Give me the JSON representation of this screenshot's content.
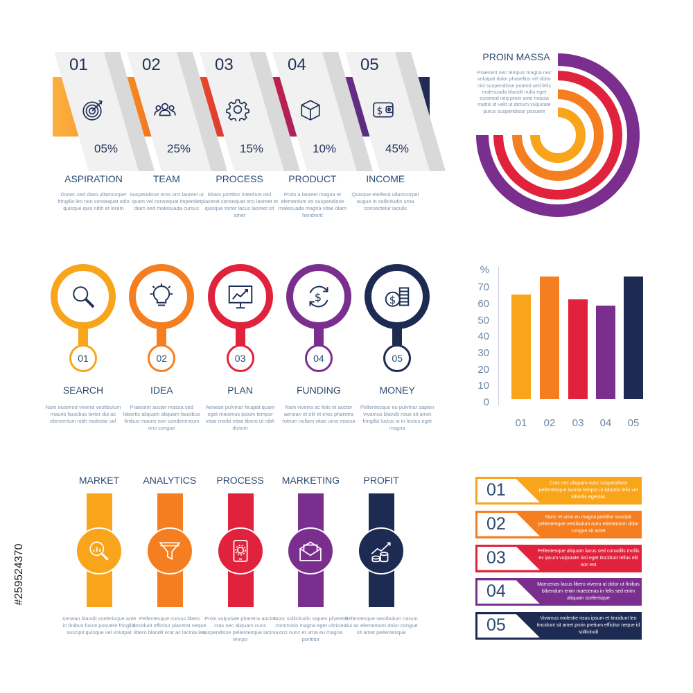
{
  "colors": {
    "c1": "#f8a51c",
    "c2": "#f57f20",
    "c3": "#e1223c",
    "c4": "#7a2f8f",
    "c5": "#1d2a52",
    "text": "#2b4a6f",
    "muted": "#7d93ad"
  },
  "steps": [
    {
      "num": "01",
      "pct": "05%",
      "icon": "target-icon",
      "title": "ASPIRATION",
      "desc": "Donec sed diam ullamcorper fringilla leo non consequat odio quisque quis nibh et lorem"
    },
    {
      "num": "02",
      "pct": "25%",
      "icon": "team-icon",
      "title": "TEAM",
      "desc": "Suspendisse eros orci laoreet ut quam vel consequat imperdiet diam sed malesuada cursus"
    },
    {
      "num": "03",
      "pct": "15%",
      "icon": "gear-icon",
      "title": "PROCESS",
      "desc": "Etiam porttitor interdum nisl placerat consequat orci laoreet et quisque tortor lacus laoreet sit amet"
    },
    {
      "num": "04",
      "pct": "10%",
      "icon": "box-icon",
      "title": "PRODUCT",
      "desc": "Proin a laoreet magna et elementum ex suspendisse malesuada magna vitae diam hendrerit"
    },
    {
      "num": "05",
      "pct": "45%",
      "icon": "wallet-icon",
      "title": "INCOME",
      "desc": "Quisque eleifend ullamcorper augue in sollicitudin urna consectetur iaculis"
    }
  ],
  "radial": {
    "title": "PROIN MASSA",
    "desc": "Praesent nec tempus magna nec volutpat dolor phasellus vel dolor nisl suspendisse potenti sed felis malesuada blandit nulla eget euismod neq proin ante massa mattis id velit ut dictum vulputate purus suspendisse posuere"
  },
  "circles": [
    {
      "num": "01",
      "icon": "search-icon",
      "title": "SEARCH",
      "desc": "Nam euismod viverra vestibulum mauris faucibus tortor dui ac elementum nibh molestie vel"
    },
    {
      "num": "02",
      "icon": "lightbulb-icon",
      "title": "IDEA",
      "desc": "Praesent auctor massa sed lobortis aliquam aliquam faucibus finibus mauris non condimentum orci congue"
    },
    {
      "num": "03",
      "icon": "chart-board-icon",
      "title": "PLAN",
      "desc": "Aenean pulvinar feugiat quam eget maximus ipsum tempor vitae morbi vitae libero ut nibh dictum"
    },
    {
      "num": "04",
      "icon": "dollar-cycle-icon",
      "title": "FUNDING",
      "desc": "Nam viverra ac felis et auctor aenean et elit et eros pharetra rutrum nullam vitae urna massa"
    },
    {
      "num": "05",
      "icon": "coins-icon",
      "title": "MONEY",
      "desc": "Pellentesque eu pulvinar sapien vivamus blandit risus sit amet fringilla luctus in in lectus eget magna"
    }
  ],
  "chart_data": {
    "type": "bar",
    "categories": [
      "01",
      "02",
      "03",
      "04",
      "05"
    ],
    "values": [
      66,
      77,
      63,
      59,
      77
    ],
    "ylabel": "%",
    "yticks": [
      0,
      10,
      20,
      30,
      40,
      50,
      60,
      70
    ],
    "ylim": [
      0,
      80
    ],
    "grid": false,
    "colors": [
      "#f8a51c",
      "#f57f20",
      "#e1223c",
      "#7a2f8f",
      "#1d2a52"
    ]
  },
  "pillars": [
    {
      "icon": "analytics-search-icon",
      "title": "MARKET",
      "desc": "Aenean blandit scelerisque ante in finibus fusce posuere fringilla suscipit quisque vel volutpat"
    },
    {
      "icon": "funnel-icon",
      "title": "ANALYTICS",
      "desc": "Pellentesque cursus libero tincidunt efficitur placerat neque libero blandit erat ac lacinia leo"
    },
    {
      "icon": "tablet-gear-icon",
      "title": "PROCESS",
      "desc": "Proin vulputate pharetra auctor cras nec aliquam nunc suspendisse pellentesque lacinia tempo"
    },
    {
      "icon": "envelope-icon",
      "title": "MARKETING",
      "desc": "Nunc sollicitudin sapien pharetra commodo magna eget ultricies orci nunc et urna eu magna porttitor"
    },
    {
      "icon": "growth-coins-icon",
      "title": "PROFIT",
      "desc": "Pellentesque vestibulum rutrum dui ac elementum dolor congue sit amet pellentesque"
    }
  ],
  "list": [
    {
      "num": "01",
      "text": "Cras nec aliquam nunc suspendisse pellentesque lacinia tempor in lobortis felis vel lobortis egestas"
    },
    {
      "num": "02",
      "text": "Nunc et urna eu magna porttitor suscipit pellentesque vestibulum rutru elementum dolor congue sit amet"
    },
    {
      "num": "03",
      "text": "Pellentesque aliquam lacus sed convallis mollis ex ipsum vulputate nisi eget tincidunt tellus elit non est"
    },
    {
      "num": "04",
      "text": "Maecenas lacus libero viverra at dolor ut finibus bibendum enim maecenas in felis sed enim aliquam scelerisque"
    },
    {
      "num": "05",
      "text": "Vivamus molestie risus ipsum et tincidunt leo tincidunt sit amet proin pretium efficitur neque id sollicitudi"
    }
  ],
  "stock_id": "#259524370"
}
